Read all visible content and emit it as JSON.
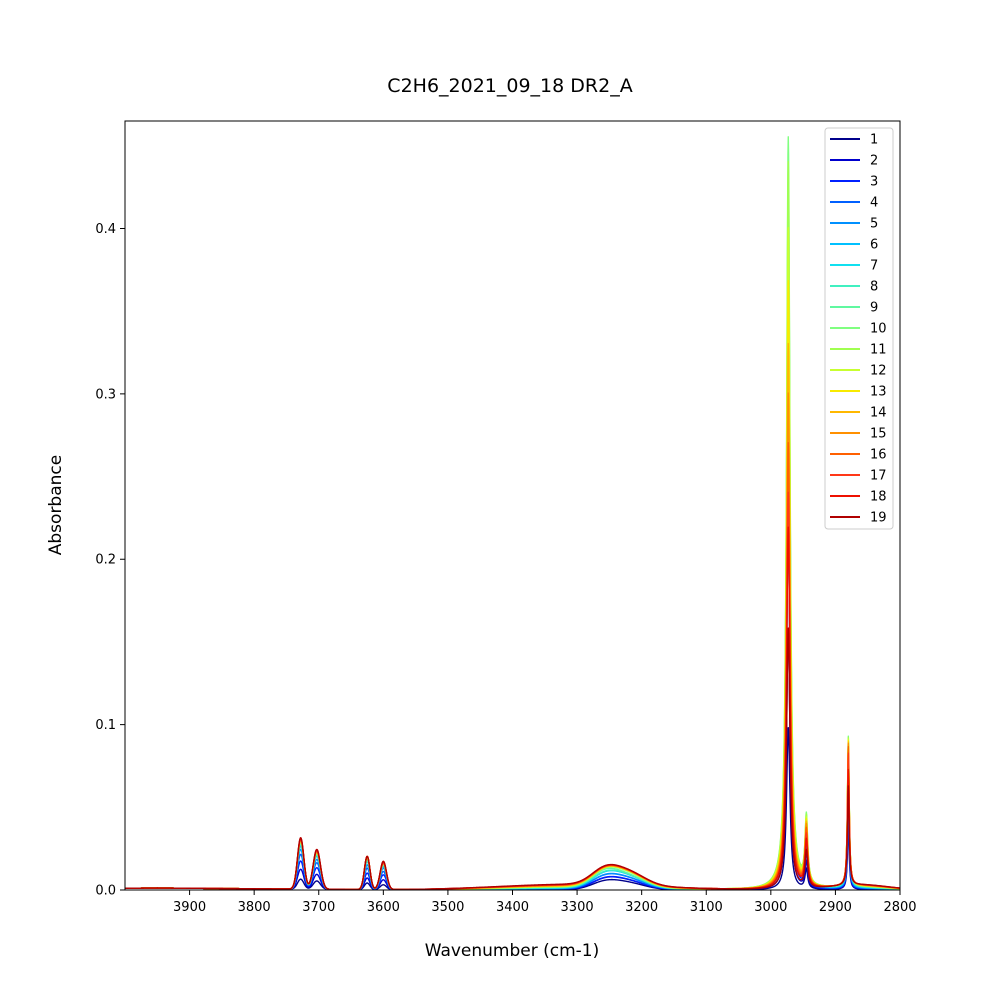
{
  "chart_data": {
    "type": "line",
    "title": "C2H6_2021_09_18 DR2_A",
    "xlabel": "Wavenumber (cm-1)",
    "ylabel": "Absorbance",
    "xlim": [
      4000,
      2800
    ],
    "x_reversed": true,
    "ylim": [
      0,
      0.465
    ],
    "xticks": [
      3900,
      3800,
      3700,
      3600,
      3500,
      3400,
      3300,
      3200,
      3100,
      3000,
      2900,
      2800
    ],
    "yticks": [
      0.0,
      0.1,
      0.2,
      0.3,
      0.4
    ],
    "ytick_labels": [
      "0.0",
      "0.1",
      "0.2",
      "0.3",
      "0.4"
    ],
    "grid": false,
    "legend_position": "top-right",
    "peaks_cm1": [
      3728,
      3703,
      3625,
      3600,
      3258,
      3222,
      2973,
      2945,
      2880
    ],
    "series": [
      {
        "name": "1",
        "color": "#00008b",
        "peak_values": [
          0.006,
          0.005,
          0.004,
          0.003,
          0.004,
          0.004,
          0.098,
          0.012,
          0.04
        ]
      },
      {
        "name": "2",
        "color": "#0000cd",
        "peak_values": [
          0.012,
          0.009,
          0.007,
          0.006,
          0.005,
          0.005,
          0.158,
          0.016,
          0.045
        ]
      },
      {
        "name": "3",
        "color": "#0020ff",
        "peak_values": [
          0.017,
          0.013,
          0.01,
          0.009,
          0.005,
          0.005,
          0.219,
          0.02,
          0.05
        ]
      },
      {
        "name": "4",
        "color": "#0060ff",
        "peak_values": [
          0.021,
          0.016,
          0.013,
          0.011,
          0.006,
          0.006,
          0.268,
          0.024,
          0.058
        ]
      },
      {
        "name": "5",
        "color": "#0090ff",
        "peak_values": [
          0.024,
          0.018,
          0.015,
          0.013,
          0.006,
          0.006,
          0.3,
          0.027,
          0.064
        ]
      },
      {
        "name": "6",
        "color": "#00c0ff",
        "peak_values": [
          0.026,
          0.02,
          0.017,
          0.014,
          0.007,
          0.007,
          0.33,
          0.03,
          0.07
        ]
      },
      {
        "name": "7",
        "color": "#10e0f0",
        "peak_values": [
          0.027,
          0.021,
          0.018,
          0.015,
          0.007,
          0.007,
          0.365,
          0.033,
          0.076
        ]
      },
      {
        "name": "8",
        "color": "#40f0c0",
        "peak_values": [
          0.028,
          0.021,
          0.018,
          0.015,
          0.007,
          0.007,
          0.395,
          0.036,
          0.082
        ]
      },
      {
        "name": "9",
        "color": "#60f8a0",
        "peak_values": [
          0.028,
          0.022,
          0.019,
          0.015,
          0.008,
          0.007,
          0.425,
          0.038,
          0.087
        ]
      },
      {
        "name": "10",
        "color": "#80ff80",
        "peak_values": [
          0.029,
          0.022,
          0.019,
          0.016,
          0.008,
          0.008,
          0.455,
          0.041,
          0.091
        ]
      },
      {
        "name": "11",
        "color": "#a0ff50",
        "peak_values": [
          0.029,
          0.022,
          0.019,
          0.016,
          0.008,
          0.008,
          0.44,
          0.04,
          0.09
        ]
      },
      {
        "name": "12",
        "color": "#c8ff30",
        "peak_values": [
          0.029,
          0.022,
          0.019,
          0.016,
          0.008,
          0.008,
          0.4,
          0.039,
          0.089
        ]
      },
      {
        "name": "13",
        "color": "#f8ea00",
        "peak_values": [
          0.03,
          0.023,
          0.02,
          0.016,
          0.008,
          0.008,
          0.368,
          0.038,
          0.088
        ]
      },
      {
        "name": "14",
        "color": "#ffb800",
        "peak_values": [
          0.03,
          0.023,
          0.02,
          0.016,
          0.008,
          0.008,
          0.33,
          0.037,
          0.087
        ]
      },
      {
        "name": "15",
        "color": "#ff9000",
        "peak_values": [
          0.03,
          0.023,
          0.02,
          0.016,
          0.008,
          0.008,
          0.3,
          0.036,
          0.086
        ]
      },
      {
        "name": "16",
        "color": "#ff6000",
        "peak_values": [
          0.03,
          0.023,
          0.02,
          0.016,
          0.008,
          0.008,
          0.27,
          0.034,
          0.084
        ]
      },
      {
        "name": "17",
        "color": "#ff3818",
        "peak_values": [
          0.03,
          0.023,
          0.02,
          0.016,
          0.008,
          0.008,
          0.24,
          0.031,
          0.08
        ]
      },
      {
        "name": "18",
        "color": "#ee1000",
        "peak_values": [
          0.031,
          0.024,
          0.02,
          0.017,
          0.008,
          0.008,
          0.219,
          0.028,
          0.07
        ]
      },
      {
        "name": "19",
        "color": "#b00000",
        "peak_values": [
          0.031,
          0.024,
          0.02,
          0.017,
          0.008,
          0.008,
          0.158,
          0.022,
          0.06
        ]
      }
    ]
  }
}
